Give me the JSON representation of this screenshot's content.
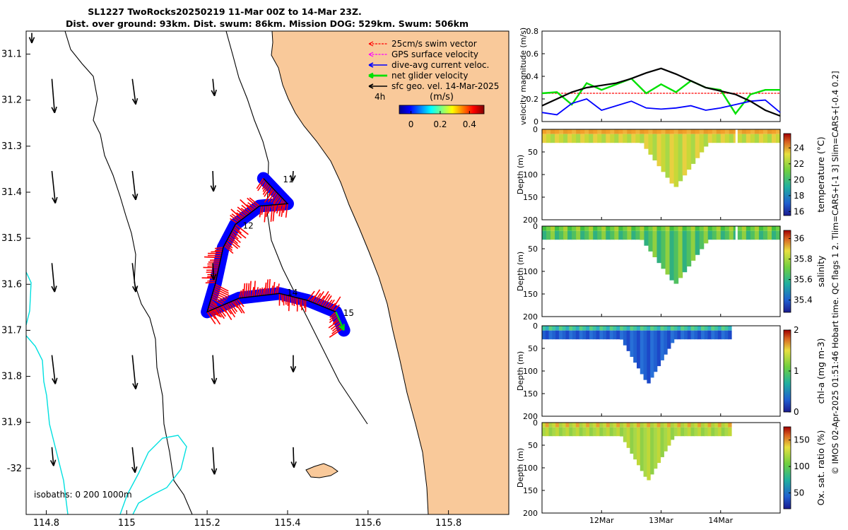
{
  "title": {
    "line1": "SL1227 TwoRocks20250219 11-Mar 00Z to 14-Mar 23Z.",
    "line2": "Dist. over ground: 93km. Dist. swum: 86km. Mission DOG: 529km. Swum: 506km"
  },
  "colors": {
    "land": "#f9c99a",
    "swim": "#ff0000",
    "gps": "#ff00ff",
    "dive_avg": "#0000ff",
    "net_glider": "#00e000",
    "sfc_geo": "#000000",
    "isobath": "#00e0e0"
  },
  "map": {
    "xlim": [
      114.75,
      115.95
    ],
    "ylim": [
      -32.1,
      -31.05
    ],
    "x_ticks": [
      "114.8",
      "115",
      "115.2",
      "115.4",
      "115.6",
      "115.8"
    ],
    "x_tick_values": [
      114.8,
      115.0,
      115.2,
      115.4,
      115.6,
      115.8
    ],
    "y_ticks": [
      "31.1",
      "31.2",
      "31.3",
      "31.4",
      "31.5",
      "31.6",
      "31.7",
      "31.8",
      "31.9",
      "-32"
    ],
    "y_tick_values": [
      -31.1,
      -31.2,
      -31.3,
      -31.4,
      -31.5,
      -31.6,
      -31.7,
      -31.8,
      -31.9,
      -32.0
    ],
    "legend": {
      "items": [
        "25cm/s swim vector",
        "GPS surface velocity",
        "dive-avg current veloc.",
        "net glider velocity",
        "sfc geo. vel. 14-Mar-2025"
      ],
      "interval_label": "4h",
      "speed_label": "(m/s)",
      "speed_ticks": [
        "0",
        "0.2",
        "0.4"
      ],
      "speed_tick_values": [
        0,
        0.2,
        0.4
      ],
      "speed_range": [
        -0.08,
        0.5
      ]
    },
    "isobath_label": "isobaths: 0   200  1000m",
    "day_markers": [
      {
        "label": "11",
        "lon": 115.385,
        "lat": -31.385
      },
      {
        "label": "12",
        "lon": 115.285,
        "lat": -31.485
      },
      {
        "label": "14",
        "lon": 115.395,
        "lat": -31.63
      },
      {
        "label": "15",
        "lon": 115.535,
        "lat": -31.675
      }
    ],
    "track": [
      [
        115.34,
        -31.37
      ],
      [
        115.4,
        -31.425
      ],
      [
        115.33,
        -31.43
      ],
      [
        115.27,
        -31.47
      ],
      [
        115.24,
        -31.52
      ],
      [
        115.22,
        -31.6
      ],
      [
        115.2,
        -31.66
      ],
      [
        115.28,
        -31.63
      ],
      [
        115.38,
        -31.62
      ],
      [
        115.45,
        -31.635
      ],
      [
        115.52,
        -31.66
      ],
      [
        115.54,
        -31.7
      ]
    ],
    "geo_vectors": [
      {
        "lon": 114.75,
        "lat": -31.1,
        "u": 0.0,
        "v": -0.3
      },
      {
        "lon": 114.8,
        "lat": -31.2,
        "u": 0.08,
        "v": -1.0
      },
      {
        "lon": 115.0,
        "lat": -31.2,
        "u": 0.1,
        "v": -0.75
      },
      {
        "lon": 115.2,
        "lat": -31.2,
        "u": 0.05,
        "v": -0.5
      },
      {
        "lon": 114.8,
        "lat": -31.4,
        "u": 0.1,
        "v": -0.95
      },
      {
        "lon": 115.0,
        "lat": -31.4,
        "u": 0.1,
        "v": -0.85
      },
      {
        "lon": 115.2,
        "lat": -31.4,
        "u": 0.02,
        "v": -0.6
      },
      {
        "lon": 115.4,
        "lat": -31.4,
        "u": -0.02,
        "v": -0.3
      },
      {
        "lon": 114.8,
        "lat": -31.6,
        "u": 0.08,
        "v": -0.85
      },
      {
        "lon": 115.0,
        "lat": -31.6,
        "u": 0.1,
        "v": -0.85
      },
      {
        "lon": 115.2,
        "lat": -31.6,
        "u": 0.03,
        "v": -0.5
      },
      {
        "lon": 114.8,
        "lat": -31.8,
        "u": 0.1,
        "v": -0.85
      },
      {
        "lon": 115.0,
        "lat": -31.8,
        "u": 0.1,
        "v": -1.0
      },
      {
        "lon": 115.2,
        "lat": -31.8,
        "u": 0.05,
        "v": -0.85
      },
      {
        "lon": 115.4,
        "lat": -31.8,
        "u": 0.0,
        "v": -0.5
      },
      {
        "lon": 114.8,
        "lat": -32.0,
        "u": 0.05,
        "v": -0.55
      },
      {
        "lon": 115.0,
        "lat": -32.0,
        "u": 0.08,
        "v": -0.75
      },
      {
        "lon": 115.2,
        "lat": -32.0,
        "u": 0.05,
        "v": -0.8
      },
      {
        "lon": 115.4,
        "lat": -32.0,
        "u": 0.02,
        "v": -0.6
      }
    ]
  },
  "velocity_panel": {
    "ylabel": "velocity magnitude (m/s)",
    "ylim": [
      0,
      0.8
    ],
    "y_ticks": [
      "0",
      "0.2",
      "0.4",
      "0.6",
      "0.8"
    ],
    "y_tick_values": [
      0,
      0.2,
      0.4,
      0.6,
      0.8
    ],
    "days": [
      0,
      0.25,
      0.5,
      0.75,
      1,
      1.25,
      1.5,
      1.75,
      2,
      2.25,
      2.5,
      2.75,
      3,
      3.25,
      3.5,
      3.75,
      4
    ],
    "sfc_geo": [
      0.14,
      0.2,
      0.26,
      0.3,
      0.32,
      0.34,
      0.38,
      0.43,
      0.47,
      0.42,
      0.36,
      0.3,
      0.27,
      0.24,
      0.18,
      0.1,
      0.05
    ],
    "net_glider": [
      0.25,
      0.26,
      0.15,
      0.34,
      0.28,
      0.33,
      0.38,
      0.25,
      0.33,
      0.26,
      0.36,
      0.3,
      0.28,
      0.07,
      0.24,
      0.28,
      0.28
    ],
    "dive_avg": [
      0.08,
      0.06,
      0.16,
      0.2,
      0.1,
      0.14,
      0.18,
      0.12,
      0.11,
      0.12,
      0.14,
      0.1,
      0.12,
      0.15,
      0.18,
      0.19,
      0.08
    ],
    "swim": [
      0.25,
      0.25,
      0.25,
      0.25,
      0.25,
      0.25,
      0.25,
      0.25,
      0.25,
      0.25,
      0.25,
      0.25,
      0.25,
      0.25,
      0.25,
      0.25,
      0.25
    ]
  },
  "time_axis": {
    "ticks": [
      "12Mar",
      "13Mar",
      "14Mar"
    ],
    "tick_days": [
      1,
      2,
      3
    ],
    "range_days": [
      0,
      4
    ]
  },
  "section_panels": [
    {
      "id": "temperature",
      "colorbar_label": "temperature (°C)",
      "cticks": [
        "16",
        "18",
        "20",
        "22",
        "24"
      ],
      "ctick_values": [
        16,
        18,
        20,
        22,
        24
      ],
      "clim": [
        15.5,
        25.8
      ],
      "ylabel": "Depth (m)",
      "yticks": [
        "0",
        "50",
        "100",
        "150",
        "200"
      ],
      "ytick_values": [
        0,
        50,
        100,
        150,
        200
      ],
      "near_surface": 23.5,
      "deep": 20.5,
      "base_depth": 30
    },
    {
      "id": "salinity",
      "colorbar_label": "salinity",
      "cticks": [
        "35.4",
        "35.6",
        "35.8",
        "36"
      ],
      "ctick_values": [
        35.4,
        35.6,
        35.8,
        36.0
      ],
      "clim": [
        35.28,
        36.08
      ],
      "ylabel": "Depth (m)",
      "yticks": [
        "0",
        "50",
        "100",
        "150",
        "200"
      ],
      "ytick_values": [
        0,
        50,
        100,
        150,
        200
      ],
      "near_surface": 35.8,
      "deep": 35.75,
      "base_depth": 30
    },
    {
      "id": "chla",
      "colorbar_label": "chl-a (mg m-3)",
      "cticks": [
        "0",
        "1",
        "2"
      ],
      "ctick_values": [
        0,
        1,
        2
      ],
      "clim": [
        0,
        2
      ],
      "ylabel": "Depth (m)",
      "yticks": [
        "0",
        "50",
        "100",
        "150",
        "200"
      ],
      "ytick_values": [
        0,
        50,
        100,
        150,
        200
      ],
      "near_surface": 0.5,
      "deep": 0.2,
      "base_depth": 30
    },
    {
      "id": "oxygen",
      "colorbar_label": "Ox. sat. ratio (%)",
      "cticks": [
        "50",
        "100",
        "150"
      ],
      "ctick_values": [
        50,
        100,
        150
      ],
      "clim": [
        20,
        175
      ],
      "ylabel": "Depth (m)",
      "yticks": [
        "0",
        "50",
        "100",
        "150",
        "200"
      ],
      "ytick_values": [
        0,
        50,
        100,
        150,
        200
      ],
      "near_surface": 120,
      "deep": 100,
      "base_depth": 30
    }
  ],
  "side_note": "© IMOS 02-Apr-2025 01:51:46 Hobart time. QC flags 1  2. Tlim=CARS+[-1 3] Slim=CARS+[-0.4 0.2]"
}
